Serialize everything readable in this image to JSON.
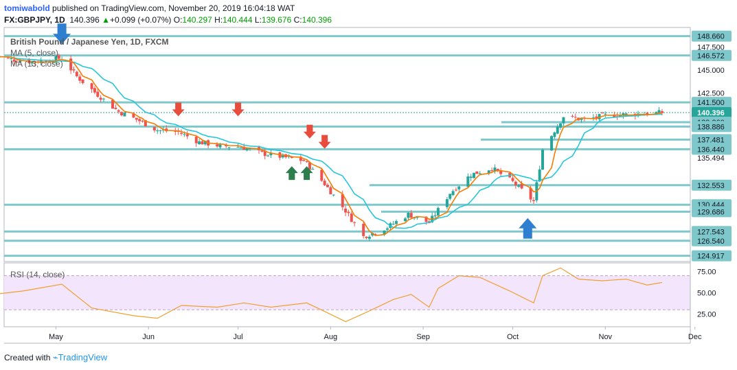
{
  "header": {
    "author": "tomiwabold",
    "published": "published on TradingView.com, November 20, 2019 16:04:18 WAT",
    "symbol": "FX:GBPJPY, 1D",
    "last": "140.396",
    "change_arrow": "▲",
    "change": "+0.099 (+0.07%)",
    "o_label": "O:",
    "o": "140.297",
    "h_label": "H:",
    "h": "140.444",
    "l_label": "L:",
    "l": "139.676",
    "c_label": "C:",
    "c": "140.396"
  },
  "footer": {
    "created_with": "Created with",
    "brand": "TradingView"
  },
  "colors": {
    "up": "#26a69a",
    "down": "#ef5350",
    "ma5": "#f57c00",
    "ma13": "#26c6da",
    "level": "#7ec8cc",
    "rsi": "#f0a030",
    "rsi_band": "#f3e5fb",
    "arrow_green": "#2e7d4f",
    "arrow_red": "#e84c3d",
    "arrow_blue": "#2f7fd1",
    "price_tag": "#26a69a"
  },
  "chart_data": [
    {
      "type": "candlestick",
      "title": "British Pound / Japanese Yen, 1D, FXCM",
      "legend": [
        "MA (5, close)",
        "MA (13, close)"
      ],
      "x_ticks": [
        "May",
        "Jun",
        "Jul",
        "Aug",
        "Sep",
        "Oct",
        "Nov",
        "Dec"
      ],
      "price_axis_labels": [
        "148.660",
        "147.500",
        "146.572",
        "145.000",
        "142.500",
        "141.500",
        "140.396",
        "139.360",
        "138.886",
        "137.481",
        "136.440",
        "135.494",
        "132.553",
        "130.444",
        "129.686",
        "127.543",
        "126.540",
        "124.917"
      ],
      "ylim": [
        124.3,
        149.6
      ],
      "last_price": 140.396,
      "horizontal_levels": [
        148.66,
        146.572,
        141.5,
        139.36,
        138.886,
        137.481,
        136.44,
        132.553,
        130.444,
        129.686,
        127.543,
        126.54,
        124.917
      ],
      "close_series_approx": [
        {
          "date": "2019-04-10",
          "close": 146.5
        },
        {
          "date": "2019-04-17",
          "close": 146.1
        },
        {
          "date": "2019-04-24",
          "close": 145.9
        },
        {
          "date": "2019-05-03",
          "close": 146.3
        },
        {
          "date": "2019-05-08",
          "close": 144.3
        },
        {
          "date": "2019-05-14",
          "close": 142.6
        },
        {
          "date": "2019-05-22",
          "close": 140.5
        },
        {
          "date": "2019-05-29",
          "close": 139.5
        },
        {
          "date": "2019-06-04",
          "close": 138.5
        },
        {
          "date": "2019-06-11",
          "close": 138.3
        },
        {
          "date": "2019-06-18",
          "close": 137.2
        },
        {
          "date": "2019-06-25",
          "close": 136.8
        },
        {
          "date": "2019-07-02",
          "close": 136.7
        },
        {
          "date": "2019-07-09",
          "close": 136.0
        },
        {
          "date": "2019-07-16",
          "close": 135.6
        },
        {
          "date": "2019-07-23",
          "close": 135.2
        },
        {
          "date": "2019-07-30",
          "close": 132.7
        },
        {
          "date": "2019-08-06",
          "close": 129.8
        },
        {
          "date": "2019-08-12",
          "close": 127.0
        },
        {
          "date": "2019-08-20",
          "close": 128.0
        },
        {
          "date": "2019-08-27",
          "close": 129.4
        },
        {
          "date": "2019-09-03",
          "close": 128.5
        },
        {
          "date": "2019-09-10",
          "close": 131.7
        },
        {
          "date": "2019-09-17",
          "close": 133.7
        },
        {
          "date": "2019-09-24",
          "close": 134.4
        },
        {
          "date": "2019-10-01",
          "close": 132.9
        },
        {
          "date": "2019-10-08",
          "close": 130.8
        },
        {
          "date": "2019-10-11",
          "close": 136.4
        },
        {
          "date": "2019-10-18",
          "close": 140.0
        },
        {
          "date": "2019-10-25",
          "close": 139.6
        },
        {
          "date": "2019-11-01",
          "close": 140.1
        },
        {
          "date": "2019-11-08",
          "close": 140.2
        },
        {
          "date": "2019-11-15",
          "close": 140.3
        },
        {
          "date": "2019-11-20",
          "close": 140.4
        }
      ],
      "annotations": [
        {
          "type": "arrow-down",
          "color": "blue",
          "date": "2019-05-03",
          "price": 147.8
        },
        {
          "type": "arrow-down",
          "color": "red",
          "date": "2019-06-11",
          "price": 140.0
        },
        {
          "type": "arrow-down",
          "color": "red",
          "date": "2019-07-01",
          "price": 140.0
        },
        {
          "type": "arrow-down",
          "color": "red",
          "date": "2019-07-25",
          "price": 137.6
        },
        {
          "type": "arrow-down",
          "color": "red",
          "date": "2019-07-30",
          "price": 136.5
        },
        {
          "type": "arrow-up",
          "color": "green",
          "date": "2019-07-19",
          "price": 134.6
        },
        {
          "type": "arrow-up",
          "color": "green",
          "date": "2019-07-24",
          "price": 134.6
        },
        {
          "type": "arrow-up",
          "color": "blue",
          "date": "2019-10-06",
          "price": 129.0
        }
      ]
    },
    {
      "type": "line",
      "title": "RSI (14, close)",
      "y_ticks": [
        "75.00",
        "50.00",
        "25.00"
      ],
      "bands": [
        30,
        70
      ],
      "ylim": [
        10,
        85
      ],
      "series_approx": [
        {
          "date": "2019-04-10",
          "rsi": 48
        },
        {
          "date": "2019-04-20",
          "rsi": 52
        },
        {
          "date": "2019-05-03",
          "rsi": 60
        },
        {
          "date": "2019-05-13",
          "rsi": 32
        },
        {
          "date": "2019-05-27",
          "rsi": 23
        },
        {
          "date": "2019-06-04",
          "rsi": 20
        },
        {
          "date": "2019-06-12",
          "rsi": 35
        },
        {
          "date": "2019-06-24",
          "rsi": 33
        },
        {
          "date": "2019-07-03",
          "rsi": 38
        },
        {
          "date": "2019-07-12",
          "rsi": 33
        },
        {
          "date": "2019-07-24",
          "rsi": 38
        },
        {
          "date": "2019-07-30",
          "rsi": 28
        },
        {
          "date": "2019-08-06",
          "rsi": 16
        },
        {
          "date": "2019-08-13",
          "rsi": 27
        },
        {
          "date": "2019-08-22",
          "rsi": 42
        },
        {
          "date": "2019-08-28",
          "rsi": 48
        },
        {
          "date": "2019-09-03",
          "rsi": 33
        },
        {
          "date": "2019-09-06",
          "rsi": 55
        },
        {
          "date": "2019-09-13",
          "rsi": 70
        },
        {
          "date": "2019-09-20",
          "rsi": 68
        },
        {
          "date": "2019-09-30",
          "rsi": 52
        },
        {
          "date": "2019-10-08",
          "rsi": 38
        },
        {
          "date": "2019-10-11",
          "rsi": 70
        },
        {
          "date": "2019-10-17",
          "rsi": 79
        },
        {
          "date": "2019-10-23",
          "rsi": 66
        },
        {
          "date": "2019-10-31",
          "rsi": 64
        },
        {
          "date": "2019-11-08",
          "rsi": 66
        },
        {
          "date": "2019-11-15",
          "rsi": 59
        },
        {
          "date": "2019-11-20",
          "rsi": 62
        }
      ]
    }
  ]
}
